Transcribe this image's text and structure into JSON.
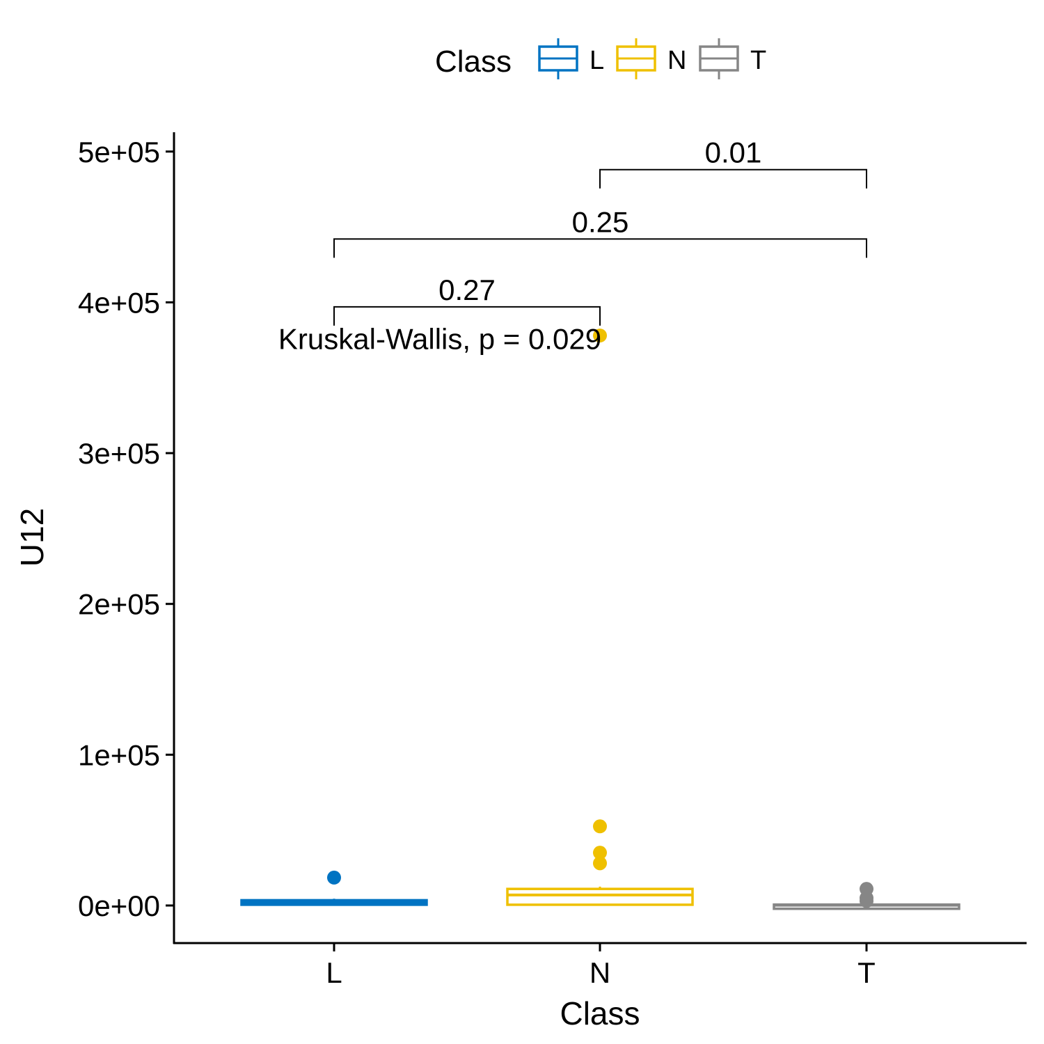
{
  "chart_data": {
    "type": "box",
    "xlabel": "Class",
    "ylabel": "U12",
    "categories": [
      "L",
      "N",
      "T"
    ],
    "ylim": [
      -25000,
      525000
    ],
    "yticks": [
      0,
      100000,
      200000,
      300000,
      400000,
      500000
    ],
    "ytick_labels": [
      "0e+00",
      "1e+05",
      "2e+05",
      "3e+05",
      "4e+05",
      "5e+05"
    ],
    "legend": {
      "title": "Class",
      "position": "top",
      "entries": [
        {
          "label": "L",
          "color": "#0073C2"
        },
        {
          "label": "N",
          "color": "#EFC000"
        },
        {
          "label": "T",
          "color": "#868686"
        }
      ]
    },
    "boxes": [
      {
        "category": "L",
        "color": "#0073C2",
        "whisker_low": 500,
        "q1": 500,
        "median": 2000,
        "q3": 3500,
        "whisker_high": 4500,
        "outliers": [
          18500
        ]
      },
      {
        "category": "N",
        "color": "#EFC000",
        "whisker_low": 500,
        "q1": 500,
        "median": 7000,
        "q3": 11000,
        "whisker_high": 12500,
        "outliers": [
          52500,
          35000,
          28000,
          378000
        ]
      },
      {
        "category": "T",
        "color": "#868686",
        "whisker_low": 0,
        "q1": 0,
        "median": 200,
        "q3": 600,
        "whisker_high": 1200,
        "outliers": [
          11000,
          5000,
          3000
        ]
      }
    ],
    "comparisons": [
      {
        "group1": "L",
        "group2": "N",
        "label": "0.27",
        "y": 397000
      },
      {
        "group1": "L",
        "group2": "T",
        "label": "0.25",
        "y": 442000
      },
      {
        "group1": "N",
        "group2": "T",
        "label": "0.01",
        "y": 488000
      }
    ],
    "global_test": {
      "label": "Kruskal-Wallis, p = 0.029",
      "y": 376000
    },
    "grid": false
  }
}
